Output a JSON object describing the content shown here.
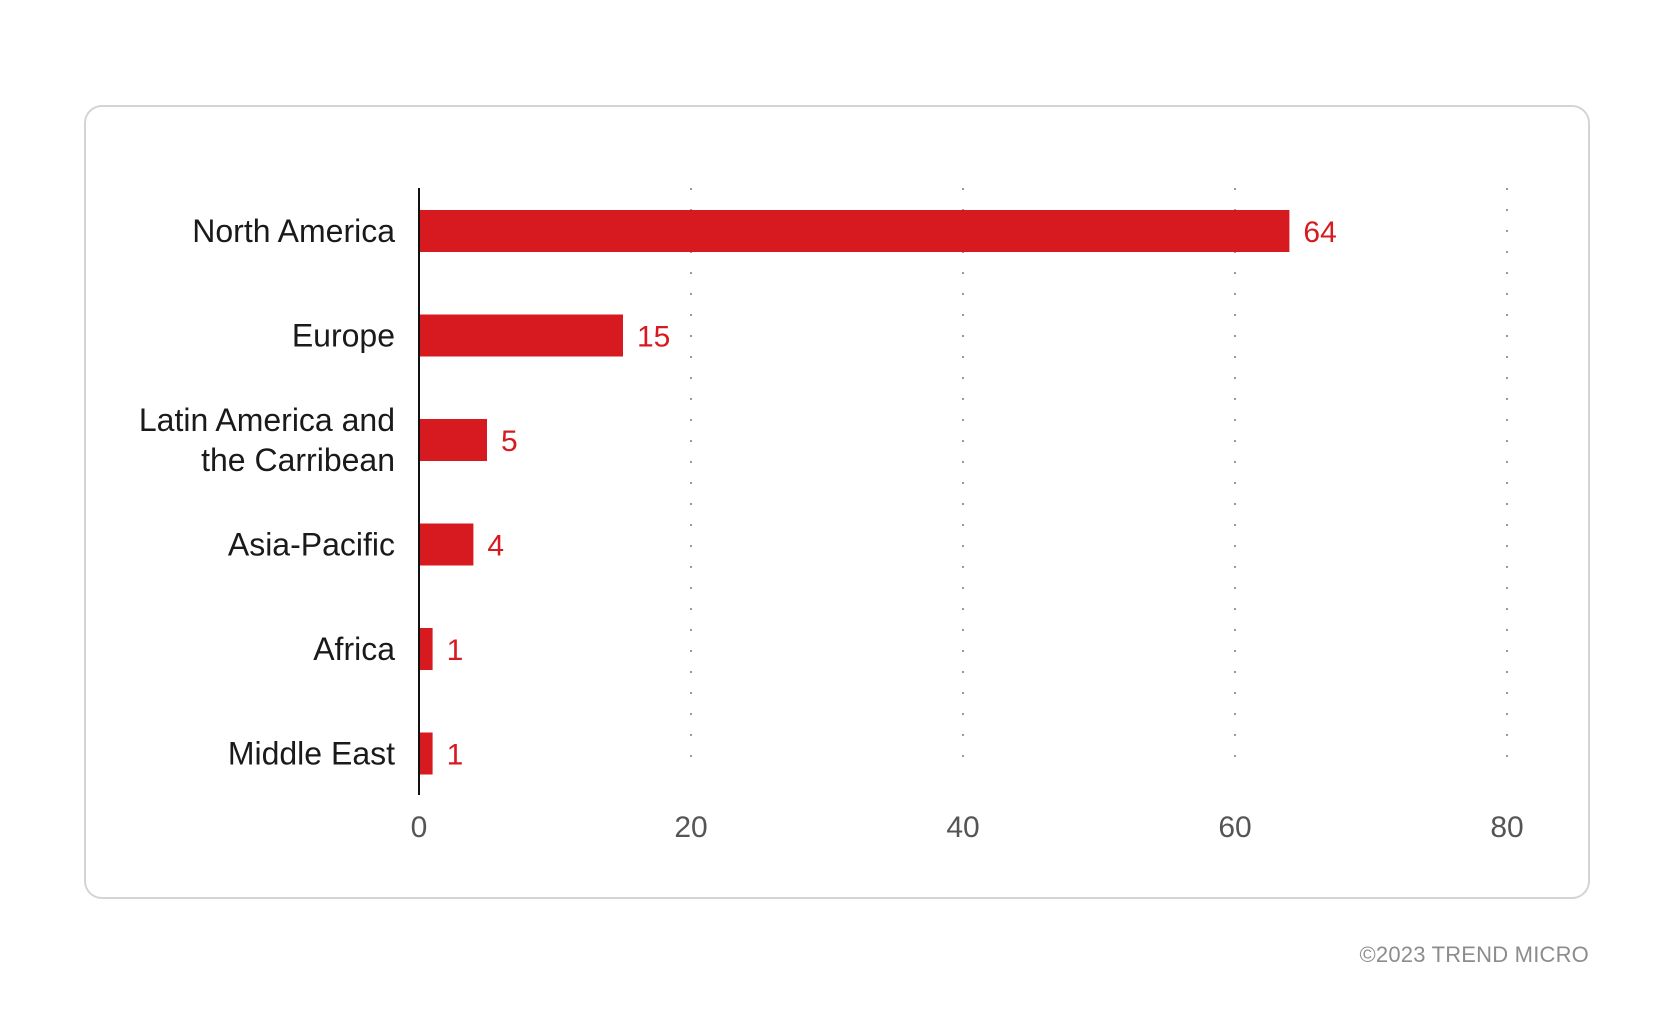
{
  "chart_data": {
    "type": "bar",
    "orientation": "horizontal",
    "categories": [
      [
        "North America"
      ],
      [
        "Europe"
      ],
      [
        "Latin America and",
        "the Carribean"
      ],
      [
        "Asia-Pacific"
      ],
      [
        "Africa"
      ],
      [
        "Middle East"
      ]
    ],
    "values": [
      64,
      15,
      5,
      4,
      1,
      1
    ],
    "xlim": [
      0,
      80
    ],
    "xticks": [
      0,
      20,
      40,
      60,
      80
    ],
    "grid": "vertical dotted",
    "data_labels": true,
    "bar_color": "#d71920",
    "label_color": "#d71920"
  },
  "footer": {
    "copyright": "©2023 TREND MICRO"
  }
}
